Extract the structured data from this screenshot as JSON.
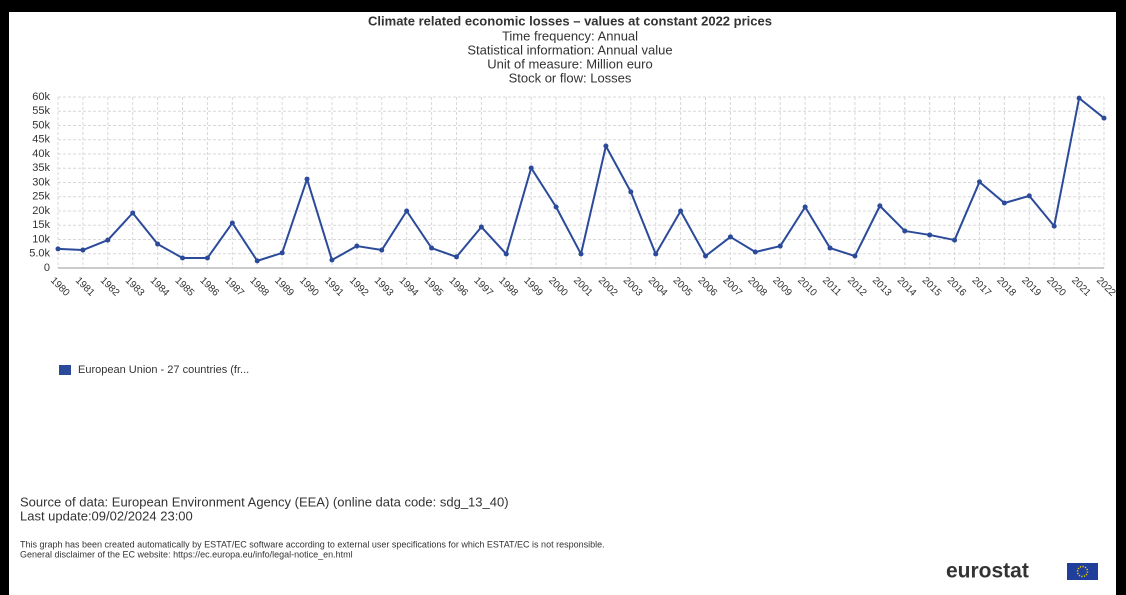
{
  "chart_data": {
    "type": "line",
    "title": "Climate related economic losses – values at constant 2022 prices",
    "subtitle": [
      "Time frequency: Annual",
      "Statistical information: Annual value",
      "Unit of measure: Million euro",
      "Stock or flow: Losses"
    ],
    "categories": [
      "1980",
      "1981",
      "1982",
      "1983",
      "1984",
      "1985",
      "1986",
      "1987",
      "1988",
      "1989",
      "1990",
      "1991",
      "1992",
      "1993",
      "1994",
      "1995",
      "1996",
      "1997",
      "1998",
      "1999",
      "2000",
      "2001",
      "2002",
      "2003",
      "2004",
      "2005",
      "2006",
      "2007",
      "2008",
      "2009",
      "2010",
      "2011",
      "2012",
      "2013",
      "2014",
      "2015",
      "2016",
      "2017",
      "2018",
      "2019",
      "2020",
      "2021",
      "2022"
    ],
    "series": [
      {
        "name": "European Union - 27 countries (fr...",
        "color": "#2b4a9a",
        "values": [
          6700,
          6300,
          9800,
          19300,
          8400,
          3500,
          3500,
          15800,
          2500,
          5300,
          31200,
          2800,
          7700,
          6300,
          20000,
          7000,
          3900,
          14400,
          4900,
          35100,
          21400,
          4900,
          42800,
          26700,
          4900,
          20000,
          4200,
          10900,
          5600,
          7700,
          21400,
          7000,
          4200,
          21800,
          13000,
          11600,
          9800,
          30200,
          22800,
          25300,
          14700,
          59600,
          52600
        ]
      }
    ],
    "ylim": [
      0,
      60000
    ],
    "yticks": [
      0,
      {
        "value": 5000,
        "label": "5.0k"
      },
      {
        "value": 10000,
        "label": "10k"
      },
      {
        "value": 15000,
        "label": "15k"
      },
      {
        "value": 20000,
        "label": "20k"
      },
      {
        "value": 25000,
        "label": "25k"
      },
      {
        "value": 30000,
        "label": "30k"
      },
      {
        "value": 35000,
        "label": "35k"
      },
      {
        "value": 40000,
        "label": "40k"
      },
      {
        "value": 45000,
        "label": "45k"
      },
      {
        "value": 50000,
        "label": "50k"
      },
      {
        "value": 55000,
        "label": "55k"
      },
      {
        "value": 60000,
        "label": "60k"
      }
    ],
    "grid": true,
    "source": "Source of data: European Environment Agency (EEA) (online data code: sdg_13_40)",
    "last_update": "Last update:09/02/2024 23:00",
    "disclaimer": [
      "This graph has been created automatically by ESTAT/EC software according to external user specifications for which ESTAT/EC is not responsible.",
      "General disclaimer of the EC website: https://ec.europa.eu/info/legal-notice_en.html"
    ],
    "logo": "eurostat"
  }
}
